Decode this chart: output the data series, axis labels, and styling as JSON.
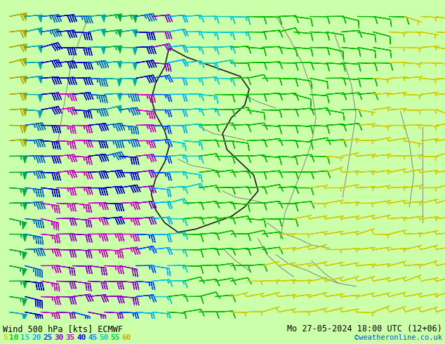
{
  "title_left": "Wind 500 hPa [kts] ECMWF",
  "title_right": "Mo 27-05-2024 18:00 UTC (12+06)",
  "credit": "©weatheronline.co.uk",
  "legend_values": [
    "5",
    "10",
    "15",
    "20",
    "25",
    "30",
    "35",
    "40",
    "45",
    "50",
    "55",
    "60"
  ],
  "legend_colors": [
    "#cccc00",
    "#00cc00",
    "#00cccc",
    "#00aaff",
    "#0044ff",
    "#8800cc",
    "#cc00cc",
    "#0000ff",
    "#0088ff",
    "#00cccc",
    "#00cc44",
    "#ccaa00"
  ],
  "bg_color": "#ccffaa",
  "fig_width": 6.34,
  "fig_height": 4.9,
  "dpi": 100,
  "bottom_bar_color": "#ccffaa",
  "text_color": "#000000",
  "map_border_color": "#555555",
  "gray_border_color": "#aaaaaa"
}
